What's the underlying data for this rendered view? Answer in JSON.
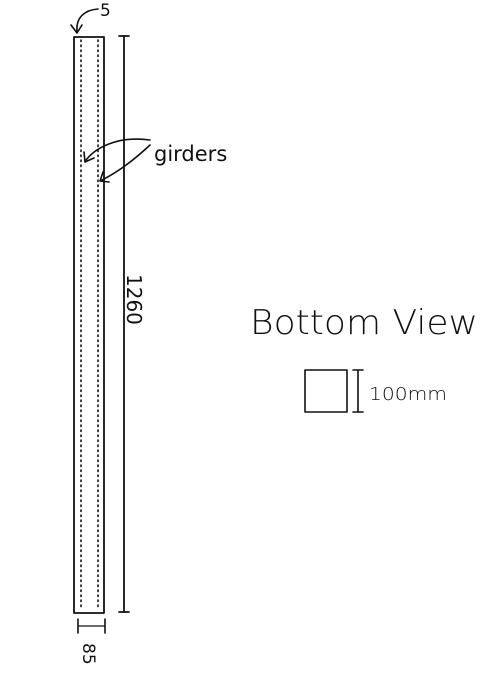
{
  "diagram": {
    "labels": {
      "thickness": "5",
      "girders": "girders",
      "length": "1260",
      "width": "85",
      "view_title": "Bottom View",
      "square_size": "100mm"
    },
    "ink_color": "#111111"
  }
}
